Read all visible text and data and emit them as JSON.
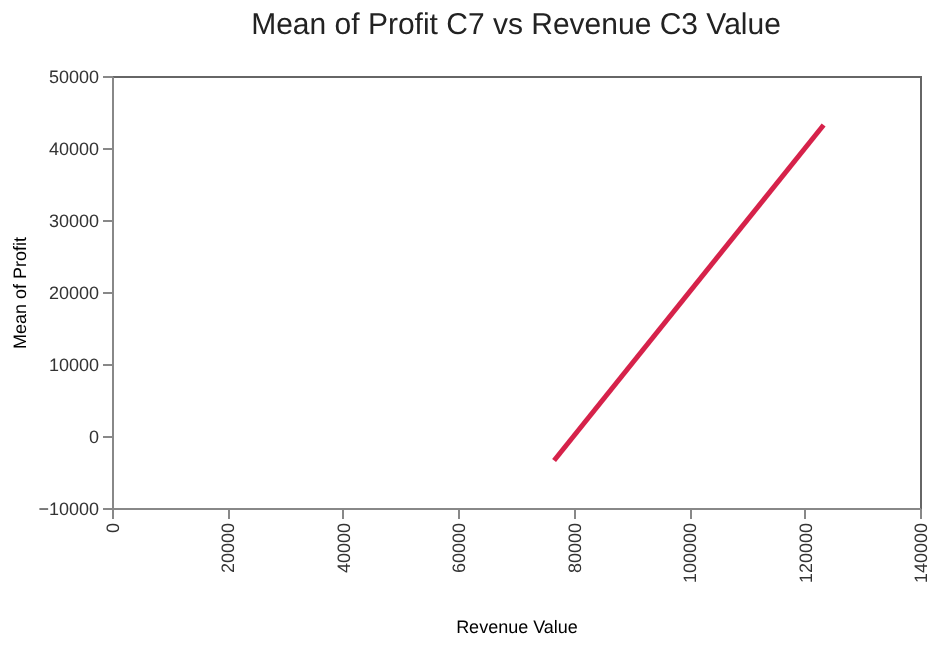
{
  "chart_data": {
    "type": "line",
    "title": "Mean of Profit C7 vs Revenue C3 Value",
    "xlabel": "Revenue Value",
    "ylabel": "Mean of Profit",
    "x": [
      76600,
      123300
    ],
    "series": [
      {
        "color": "#d6224a",
        "values": [
          -3400,
          43200
        ]
      }
    ],
    "xlim": [
      0,
      140000
    ],
    "xticks": [
      0,
      20000,
      40000,
      60000,
      80000,
      100000,
      120000,
      140000
    ],
    "ylim": [
      -10000,
      50000
    ],
    "yticks": [
      -10000,
      0,
      10000,
      20000,
      30000,
      40000,
      50000
    ],
    "grid": false,
    "legend": false,
    "marker": "none",
    "line_style": "solid"
  }
}
